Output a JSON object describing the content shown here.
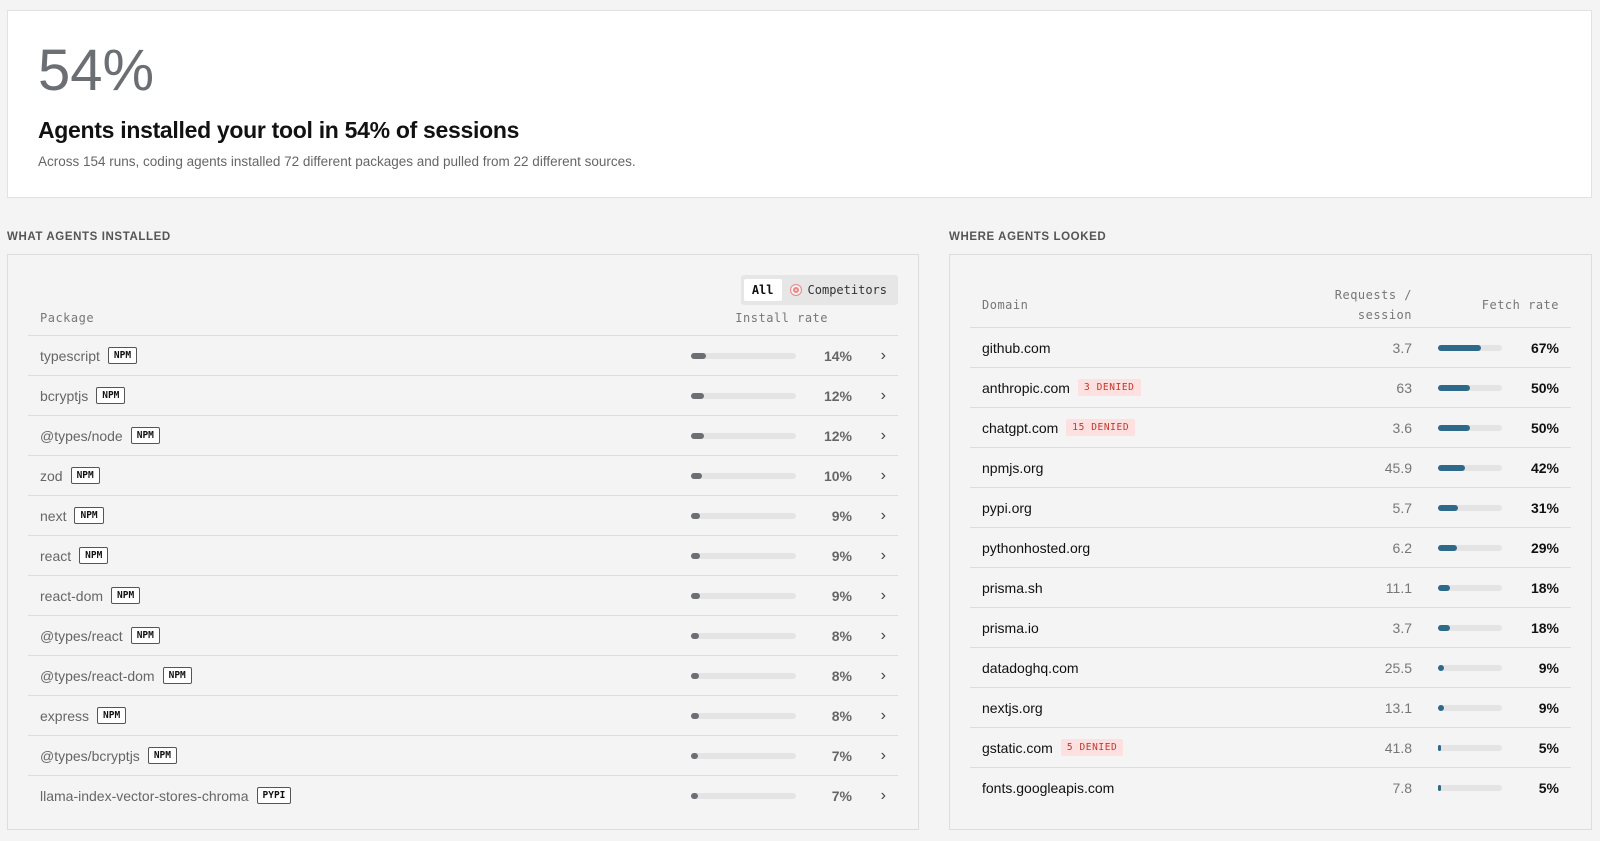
{
  "summary": {
    "headline": "54%",
    "title": "Agents installed your tool in 54% of sessions",
    "subtitle": "Across 154 runs, coding agents installed 72 different packages and pulled from 22 different sources."
  },
  "installed": {
    "heading": "WHAT AGENTS INSTALLED",
    "filters": [
      "All",
      "Competitors"
    ],
    "columns": [
      "Package",
      "Install rate"
    ],
    "rows": [
      {
        "name": "typescript",
        "registry": "NPM",
        "rate": 14,
        "rate_label": "14%"
      },
      {
        "name": "bcryptjs",
        "registry": "NPM",
        "rate": 12,
        "rate_label": "12%"
      },
      {
        "name": "@types/node",
        "registry": "NPM",
        "rate": 12,
        "rate_label": "12%"
      },
      {
        "name": "zod",
        "registry": "NPM",
        "rate": 10,
        "rate_label": "10%"
      },
      {
        "name": "next",
        "registry": "NPM",
        "rate": 9,
        "rate_label": "9%"
      },
      {
        "name": "react",
        "registry": "NPM",
        "rate": 9,
        "rate_label": "9%"
      },
      {
        "name": "react-dom",
        "registry": "NPM",
        "rate": 9,
        "rate_label": "9%"
      },
      {
        "name": "@types/react",
        "registry": "NPM",
        "rate": 8,
        "rate_label": "8%"
      },
      {
        "name": "@types/react-dom",
        "registry": "NPM",
        "rate": 8,
        "rate_label": "8%"
      },
      {
        "name": "express",
        "registry": "NPM",
        "rate": 8,
        "rate_label": "8%"
      },
      {
        "name": "@types/bcryptjs",
        "registry": "NPM",
        "rate": 7,
        "rate_label": "7%"
      },
      {
        "name": "llama-index-vector-stores-chroma",
        "registry": "PYPI",
        "rate": 7,
        "rate_label": "7%"
      }
    ]
  },
  "looked": {
    "heading": "WHERE AGENTS LOOKED",
    "columns": [
      "Domain",
      "Requests / session",
      "Fetch rate"
    ],
    "rows": [
      {
        "domain": "github.com",
        "requests": 3.7,
        "rate": 67,
        "rate_label": "67%"
      },
      {
        "domain": "anthropic.com",
        "denied": "3 DENIED",
        "requests": 63,
        "rate": 50,
        "rate_label": "50%"
      },
      {
        "domain": "chatgpt.com",
        "denied": "15 DENIED",
        "requests": 3.6,
        "rate": 50,
        "rate_label": "50%"
      },
      {
        "domain": "npmjs.org",
        "requests": 45.9,
        "rate": 42,
        "rate_label": "42%"
      },
      {
        "domain": "pypi.org",
        "requests": 5.7,
        "rate": 31,
        "rate_label": "31%"
      },
      {
        "domain": "pythonhosted.org",
        "requests": 6.2,
        "rate": 29,
        "rate_label": "29%"
      },
      {
        "domain": "prisma.sh",
        "requests": 11.1,
        "rate": 18,
        "rate_label": "18%"
      },
      {
        "domain": "prisma.io",
        "requests": 3.7,
        "rate": 18,
        "rate_label": "18%"
      },
      {
        "domain": "datadoghq.com",
        "requests": 25.5,
        "rate": 9,
        "rate_label": "9%"
      },
      {
        "domain": "nextjs.org",
        "requests": 13.1,
        "rate": 9,
        "rate_label": "9%"
      },
      {
        "domain": "gstatic.com",
        "denied": "5 DENIED",
        "requests": 41.8,
        "rate": 5,
        "rate_label": "5%"
      },
      {
        "domain": "fonts.googleapis.com",
        "requests": 7.8,
        "rate": 5,
        "rate_label": "5%"
      }
    ]
  }
}
